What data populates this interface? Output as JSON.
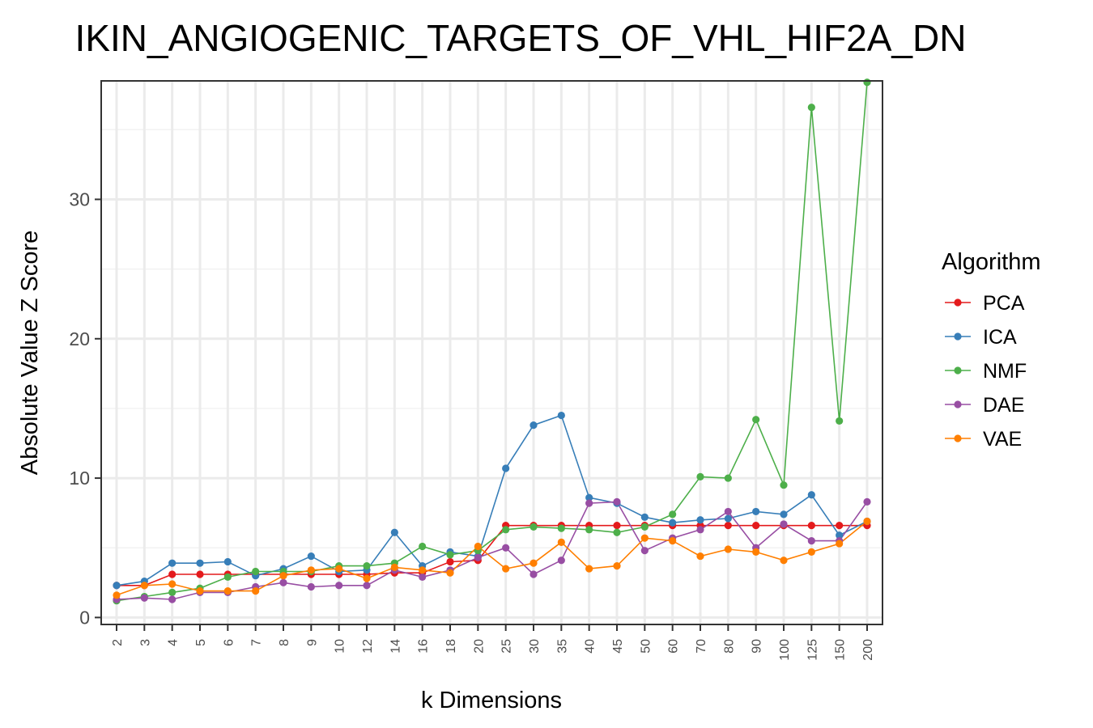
{
  "chart_data": {
    "type": "line",
    "title": "IKIN_ANGIOGENIC_TARGETS_OF_VHL_HIF2A_DN",
    "xlabel": "k Dimensions",
    "ylabel": "Absolute Value Z Score",
    "categories": [
      "2",
      "3",
      "4",
      "5",
      "6",
      "7",
      "8",
      "9",
      "10",
      "12",
      "14",
      "16",
      "18",
      "20",
      "25",
      "30",
      "35",
      "40",
      "45",
      "50",
      "60",
      "70",
      "80",
      "90",
      "100",
      "125",
      "150",
      "200"
    ],
    "yticks": [
      0,
      10,
      20,
      30
    ],
    "ylim": [
      -0.5,
      38.5
    ],
    "grid": true,
    "legend": {
      "title": "Algorithm",
      "position": "right"
    },
    "series": [
      {
        "name": "PCA",
        "color": "#e41a1c",
        "values": [
          2.3,
          2.3,
          3.1,
          3.1,
          3.1,
          3.1,
          3.1,
          3.1,
          3.1,
          3.1,
          3.2,
          3.2,
          4.0,
          4.1,
          6.6,
          6.6,
          6.6,
          6.6,
          6.6,
          6.6,
          6.6,
          6.6,
          6.6,
          6.6,
          6.6,
          6.6,
          6.6,
          6.6
        ]
      },
      {
        "name": "ICA",
        "color": "#377eb8",
        "values": [
          2.3,
          2.6,
          3.9,
          3.9,
          4.0,
          3.0,
          3.5,
          4.4,
          3.3,
          3.4,
          6.1,
          3.7,
          4.7,
          4.4,
          10.7,
          13.8,
          14.5,
          8.6,
          8.2,
          7.2,
          6.8,
          7.0,
          7.1,
          7.6,
          7.4,
          8.8,
          5.9,
          6.9
        ]
      },
      {
        "name": "NMF",
        "color": "#4daf4a",
        "values": [
          1.2,
          1.5,
          1.8,
          2.1,
          2.9,
          3.3,
          3.3,
          3.3,
          3.7,
          3.7,
          3.9,
          5.1,
          4.5,
          4.8,
          6.3,
          6.5,
          6.4,
          6.3,
          6.1,
          6.5,
          7.4,
          10.1,
          10.0,
          14.2,
          9.5,
          36.6,
          14.1,
          38.4
        ]
      },
      {
        "name": "DAE",
        "color": "#984ea3",
        "values": [
          1.3,
          1.4,
          1.3,
          1.8,
          1.8,
          2.2,
          2.5,
          2.2,
          2.3,
          2.3,
          3.4,
          2.9,
          3.4,
          4.3,
          5.0,
          3.1,
          4.1,
          8.2,
          8.3,
          4.8,
          5.7,
          6.3,
          7.6,
          5.0,
          6.7,
          5.5,
          5.5,
          8.3
        ]
      },
      {
        "name": "VAE",
        "color": "#ff7f00",
        "values": [
          1.6,
          2.3,
          2.4,
          1.9,
          1.9,
          1.9,
          3.0,
          3.4,
          3.5,
          2.8,
          3.6,
          3.4,
          3.2,
          5.1,
          3.5,
          3.9,
          5.4,
          3.5,
          3.7,
          5.7,
          5.5,
          4.4,
          4.9,
          4.7,
          4.1,
          4.7,
          5.3,
          6.9
        ]
      }
    ]
  }
}
